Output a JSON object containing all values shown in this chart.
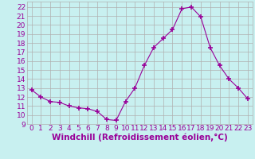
{
  "x": [
    0,
    1,
    2,
    3,
    4,
    5,
    6,
    7,
    8,
    9,
    10,
    11,
    12,
    13,
    14,
    15,
    16,
    17,
    18,
    19,
    20,
    21,
    22,
    23
  ],
  "y": [
    12.8,
    12.0,
    11.5,
    11.4,
    11.0,
    10.8,
    10.7,
    10.4,
    9.5,
    9.4,
    11.5,
    13.0,
    15.5,
    17.5,
    18.5,
    19.5,
    21.8,
    22.0,
    20.9,
    17.5,
    15.5,
    14.0,
    13.0,
    11.8
  ],
  "line_color": "#990099",
  "marker": "+",
  "marker_size": 4,
  "bg_color": "#c8f0f0",
  "grid_color": "#b0b0b0",
  "ylabel_ticks": [
    9,
    10,
    11,
    12,
    13,
    14,
    15,
    16,
    17,
    18,
    19,
    20,
    21,
    22
  ],
  "xlabel": "Windchill (Refroidissement éolien,°C)",
  "xlim": [
    -0.5,
    23.5
  ],
  "ylim": [
    9,
    22.6
  ],
  "tick_color": "#990099",
  "label_color": "#990099",
  "font_size": 6.5,
  "xlabel_font_size": 7.5
}
